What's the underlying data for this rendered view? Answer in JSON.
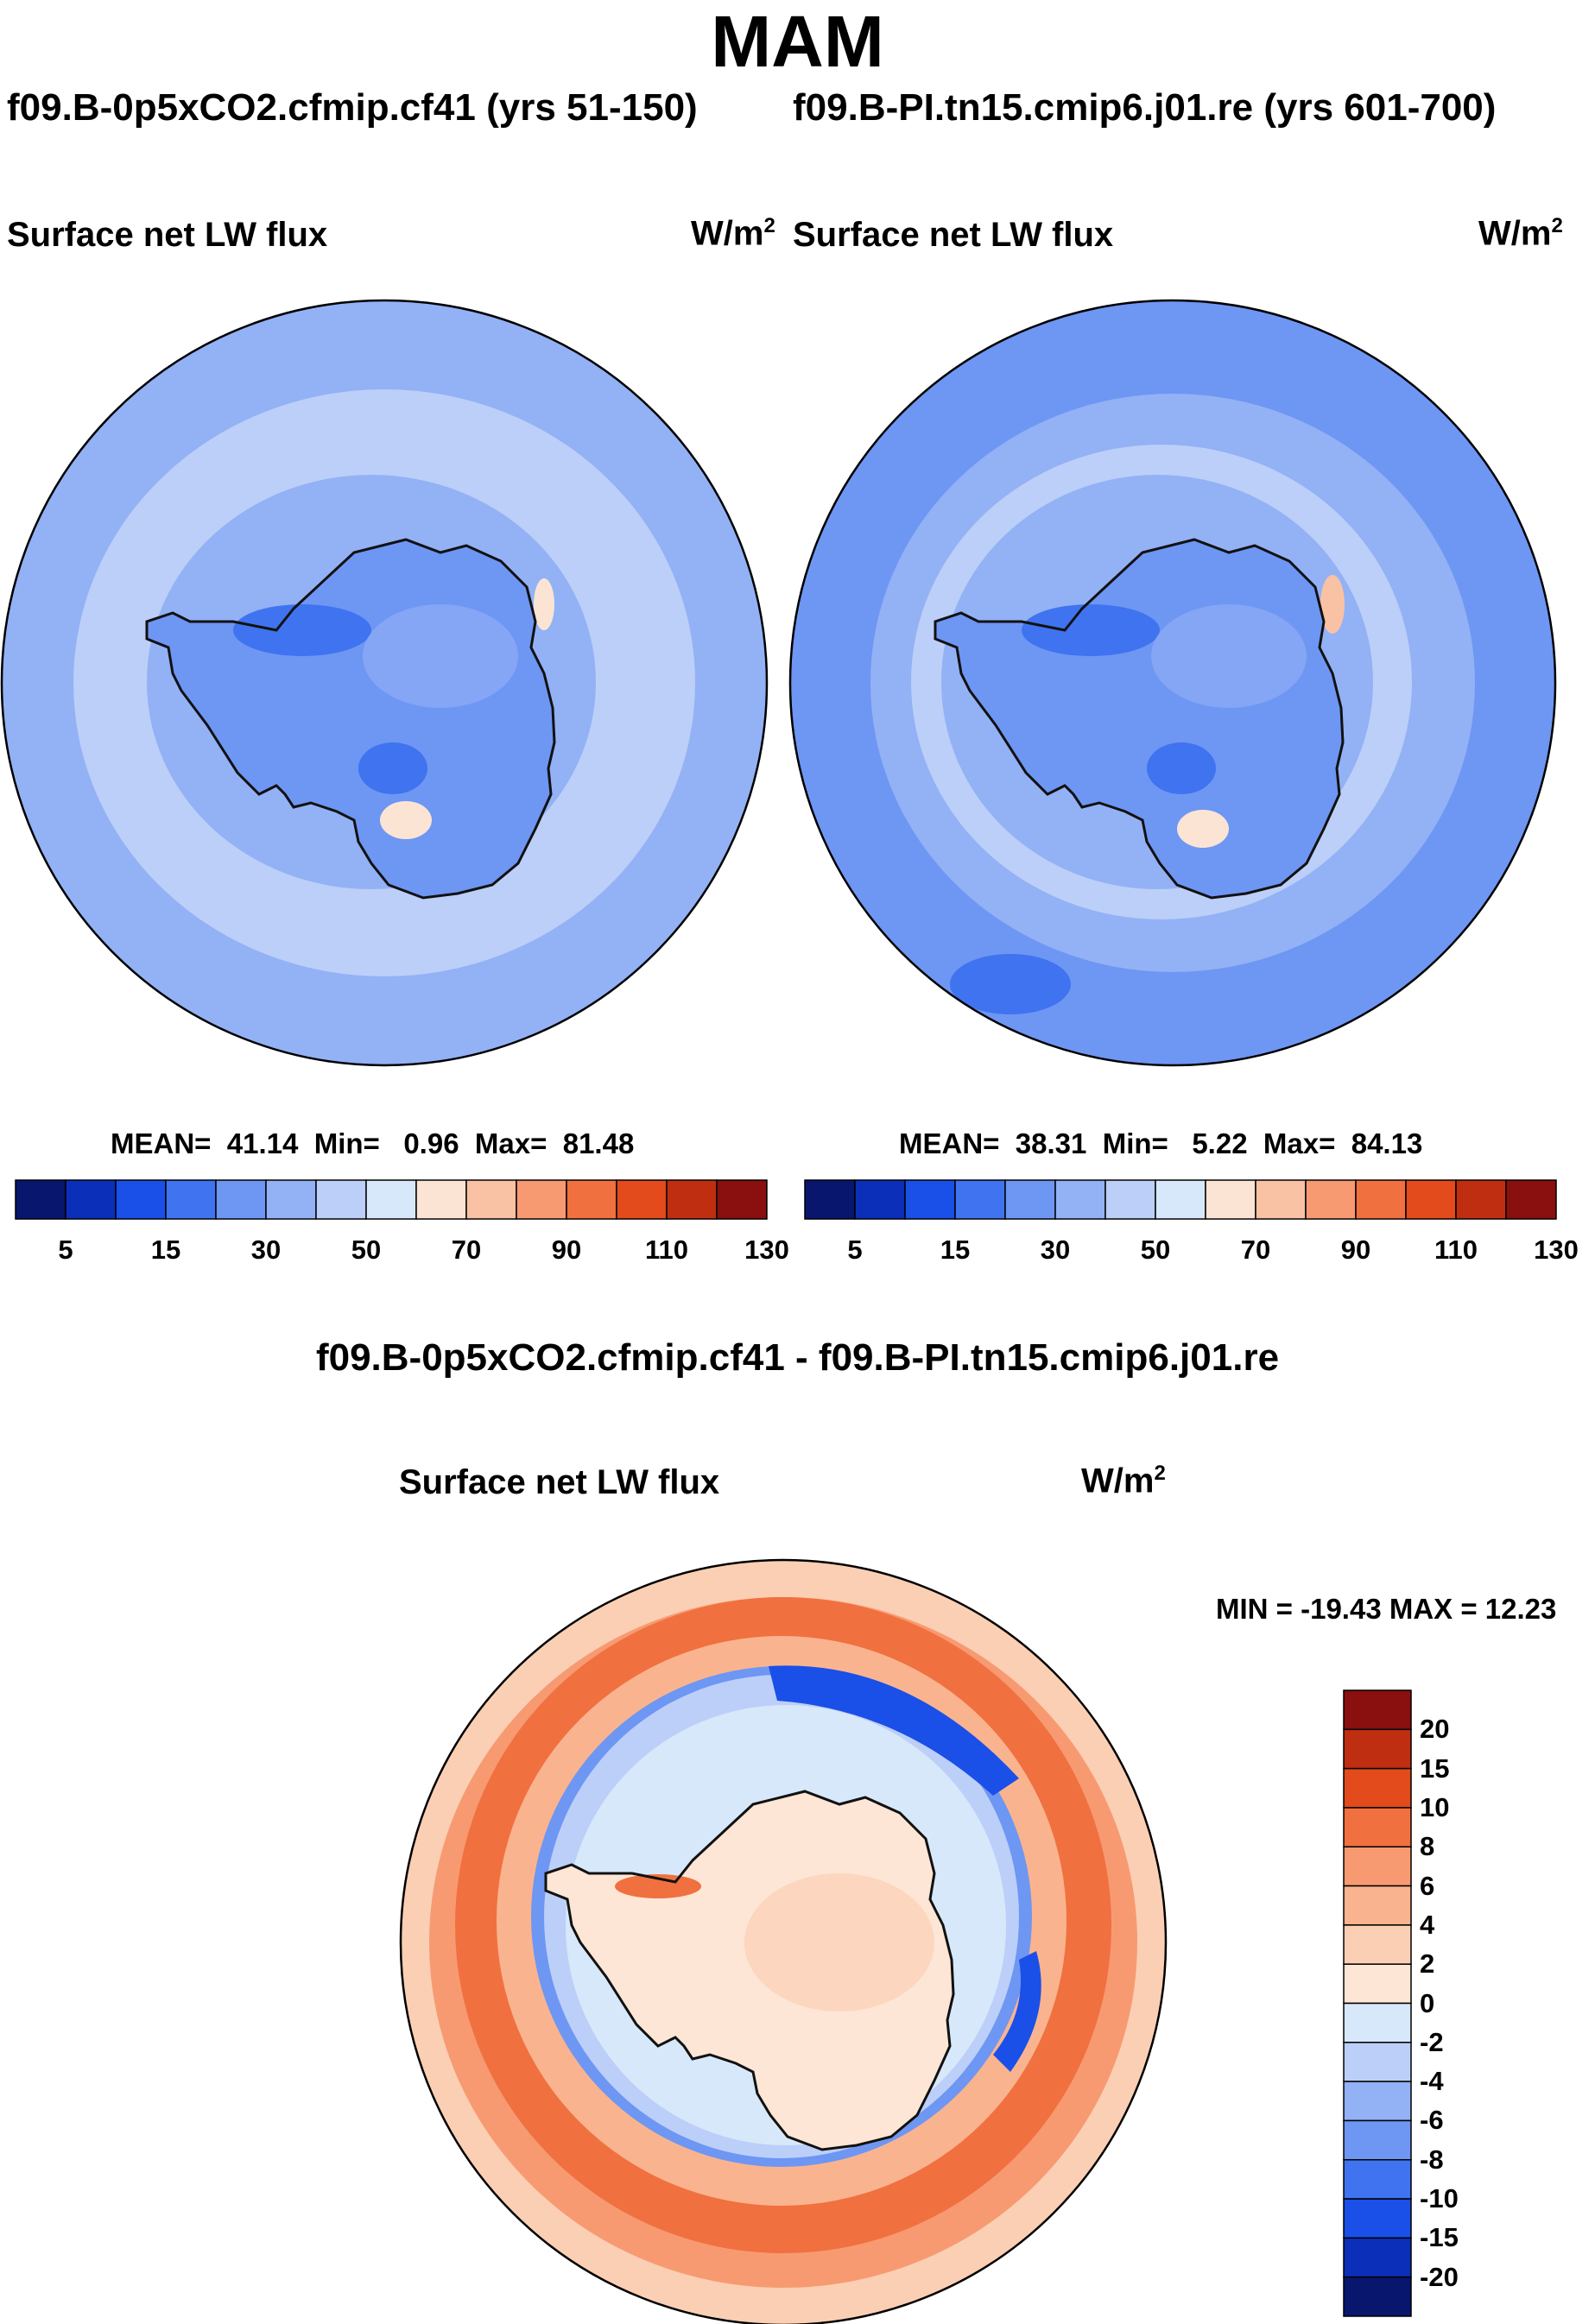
{
  "figure": {
    "title": "MAM",
    "case_labels": [
      "f09.B-0p5xCO2.cfmip.cf41 (yrs 51-150)",
      "f09.B-PI.tn15.cmip6.j01.re (yrs 601-700)"
    ],
    "diff_title": "f09.B-0p5xCO2.cfmip.cf41 - f09.B-PI.tn15.cmip6.j01.re"
  },
  "colors": {
    "map_outline": "#000000",
    "coast": "#111111"
  },
  "chart_data": [
    {
      "type": "heatmap",
      "projection": "south-polar-stereographic",
      "title": "Surface net LW flux",
      "units_base": "W/m",
      "units_sup": "2",
      "stats": {
        "mean_label": "MEAN=",
        "mean": "41.14",
        "min_label": "Min=",
        "min": "0.96",
        "max_label": "Max=",
        "max": "81.48"
      },
      "colorbar": {
        "orientation": "horizontal",
        "levels": [
          5,
          10,
          15,
          20,
          30,
          40,
          50,
          60,
          70,
          80,
          90,
          100,
          110,
          120,
          130
        ],
        "labels": [
          "5",
          "15",
          "30",
          "50",
          "70",
          "90",
          "110",
          "130"
        ],
        "colors": [
          "#08166e",
          "#0b2fb8",
          "#1a4fe8",
          "#3f73f0",
          "#6e96f3",
          "#93b1f5",
          "#bccff8",
          "#d8e8fb",
          "#fbe4d4",
          "#f9c2a4",
          "#f79a72",
          "#f1703f",
          "#e34a1c",
          "#c02e12",
          "#8a0f0f"
        ]
      }
    },
    {
      "type": "heatmap",
      "projection": "south-polar-stereographic",
      "title": "Surface net LW flux",
      "units_base": "W/m",
      "units_sup": "2",
      "stats": {
        "mean_label": "MEAN=",
        "mean": "38.31",
        "min_label": "Min=",
        "min": "5.22",
        "max_label": "Max=",
        "max": "84.13"
      },
      "colorbar": {
        "orientation": "horizontal",
        "levels": [
          5,
          10,
          15,
          20,
          30,
          40,
          50,
          60,
          70,
          80,
          90,
          100,
          110,
          120,
          130
        ],
        "labels": [
          "5",
          "15",
          "30",
          "50",
          "70",
          "90",
          "110",
          "130"
        ],
        "colors": [
          "#08166e",
          "#0b2fb8",
          "#1a4fe8",
          "#3f73f0",
          "#6e96f3",
          "#93b1f5",
          "#bccff8",
          "#d8e8fb",
          "#fbe4d4",
          "#f9c2a4",
          "#f79a72",
          "#f1703f",
          "#e34a1c",
          "#c02e12",
          "#8a0f0f"
        ]
      }
    },
    {
      "type": "heatmap",
      "projection": "south-polar-stereographic",
      "title": "Surface net LW flux",
      "units_base": "W/m",
      "units_sup": "2",
      "stats": {
        "text": "MIN = -19.43 MAX =  12.23"
      },
      "colorbar": {
        "orientation": "vertical",
        "levels": [
          -20,
          -15,
          -10,
          -8,
          -6,
          -4,
          -2,
          0,
          2,
          4,
          6,
          8,
          10,
          15,
          20
        ],
        "labels": [
          "20",
          "15",
          "10",
          "8",
          "6",
          "4",
          "2",
          "0",
          "-2",
          "-4",
          "-6",
          "-8",
          "-10",
          "-15",
          "-20"
        ],
        "colors": [
          "#8a0f0f",
          "#c02e12",
          "#e34a1c",
          "#f1703f",
          "#f79a72",
          "#f9b48f",
          "#fbcfb4",
          "#fde6d6",
          "#d8e8fb",
          "#bccff8",
          "#93b1f5",
          "#6e96f3",
          "#3f73f0",
          "#1a4fe8",
          "#0b2fb8",
          "#08166e"
        ]
      }
    }
  ]
}
